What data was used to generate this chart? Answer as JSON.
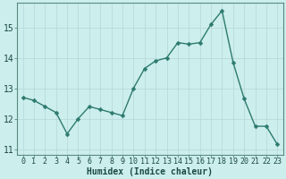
{
  "x": [
    0,
    1,
    2,
    3,
    4,
    5,
    6,
    7,
    8,
    9,
    10,
    11,
    12,
    13,
    14,
    15,
    16,
    17,
    18,
    19,
    20,
    21,
    22,
    23
  ],
  "y": [
    12.7,
    12.6,
    12.4,
    12.2,
    11.5,
    12.0,
    12.4,
    12.3,
    12.2,
    12.1,
    13.0,
    13.65,
    13.9,
    14.0,
    14.5,
    14.45,
    14.5,
    15.1,
    15.55,
    13.85,
    12.65,
    11.75,
    11.75,
    11.15
  ],
  "line_color": "#2d7a6e",
  "marker": "D",
  "marker_size": 2.5,
  "bg_color": "#cceeed",
  "grid_color_major": "#b8dada",
  "grid_color_minor": "#d4ecec",
  "axis_label": "Humidex (Indice chaleur)",
  "ylim": [
    10.8,
    15.8
  ],
  "yticks": [
    11,
    12,
    13,
    14,
    15
  ],
  "xlim": [
    -0.5,
    23.5
  ],
  "xticks": [
    0,
    1,
    2,
    3,
    4,
    5,
    6,
    7,
    8,
    9,
    10,
    11,
    12,
    13,
    14,
    15,
    16,
    17,
    18,
    19,
    20,
    21,
    22,
    23
  ],
  "tick_fontsize": 6,
  "label_fontsize": 7,
  "spine_color": "#5a8a80"
}
